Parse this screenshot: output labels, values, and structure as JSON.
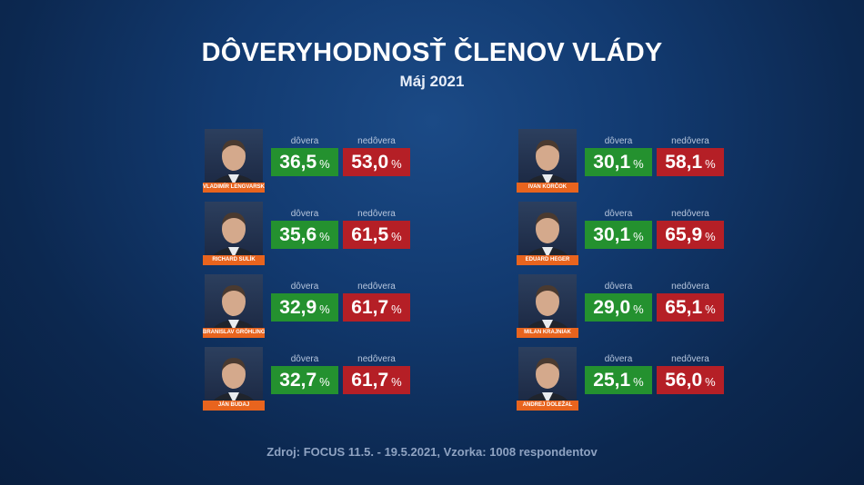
{
  "header": {
    "title": "DÔVERYHODNOSŤ ČLENOV VLÁDY",
    "subtitle": "Máj 2021"
  },
  "labels": {
    "trust": "dôvera",
    "distrust": "nedôvera",
    "percent": "%"
  },
  "source": "Zdroj: FOCUS 11.5. - 19.5.2021, Vzorka: 1008 respondentov",
  "colors": {
    "trust": "#24912f",
    "distrust": "#b51f26",
    "name_tag": "#e8641e"
  },
  "members": [
    {
      "name": "VLADIMÍR LENGVARSKÝ",
      "trust": "36,5",
      "distrust": "53,0"
    },
    {
      "name": "RICHARD SULÍK",
      "trust": "35,6",
      "distrust": "61,5"
    },
    {
      "name": "BRANISLAV GRÖHLING",
      "trust": "32,9",
      "distrust": "61,7"
    },
    {
      "name": "JÁN BUDAJ",
      "trust": "32,7",
      "distrust": "61,7"
    },
    {
      "name": "IVAN KORČOK",
      "trust": "30,1",
      "distrust": "58,1"
    },
    {
      "name": "EDUARD HEGER",
      "trust": "30,1",
      "distrust": "65,9"
    },
    {
      "name": "MILAN KRAJNIAK",
      "trust": "29,0",
      "distrust": "65,1"
    },
    {
      "name": "ANDREJ DOLEŽAL",
      "trust": "25,1",
      "distrust": "56,0"
    }
  ],
  "chart_data": {
    "type": "table",
    "title": "DÔVERYHODNOSŤ ČLENOV VLÁDY",
    "subtitle": "Máj 2021",
    "categories": [
      "VLADIMÍR LENGVARSKÝ",
      "RICHARD SULÍK",
      "BRANISLAV GRÖHLING",
      "JÁN BUDAJ",
      "IVAN KORČOK",
      "EDUARD HEGER",
      "MILAN KRAJNIAK",
      "ANDREJ DOLEŽAL"
    ],
    "series": [
      {
        "name": "dôvera",
        "values": [
          36.5,
          35.6,
          32.9,
          32.7,
          30.1,
          30.1,
          29.0,
          25.1
        ]
      },
      {
        "name": "nedôvera",
        "values": [
          53.0,
          61.5,
          61.7,
          61.7,
          58.1,
          65.9,
          65.1,
          56.0
        ]
      }
    ]
  }
}
